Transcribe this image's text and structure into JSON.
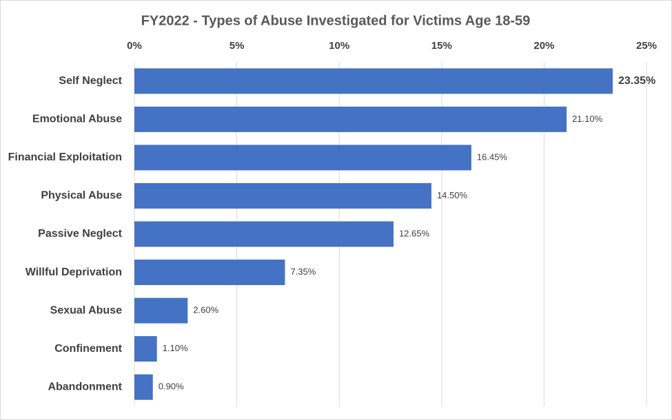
{
  "chart_data": {
    "type": "hbar",
    "title": "FY2022 - Types of Abuse Investigated for Victims Age 18-59",
    "categories": [
      "Self Neglect",
      "Emotional Abuse",
      "Financial Exploitation",
      "Physical Abuse",
      "Passive Neglect",
      "Willful Deprivation",
      "Sexual Abuse",
      "Confinement",
      "Abandonment"
    ],
    "values": [
      23.35,
      21.1,
      16.45,
      14.5,
      12.65,
      7.35,
      2.6,
      1.1,
      0.9
    ],
    "value_labels": [
      "23.35%",
      "21.10%",
      "16.45%",
      "14.50%",
      "12.65%",
      "7.35%",
      "2.60%",
      "1.10%",
      "0.90%"
    ],
    "color": "#4472c4",
    "xlim": [
      0,
      25
    ],
    "xticks": [
      {
        "value": 0,
        "label": "0%"
      },
      {
        "value": 5,
        "label": "5%"
      },
      {
        "value": 10,
        "label": "10%"
      },
      {
        "value": 15,
        "label": "15%"
      },
      {
        "value": 20,
        "label": "20%"
      },
      {
        "value": 25,
        "label": "25%"
      }
    ],
    "grid": true
  }
}
